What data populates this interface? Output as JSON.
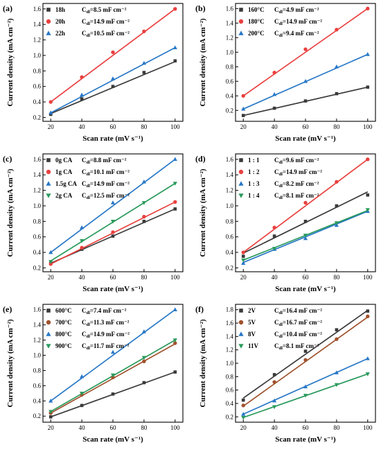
{
  "chart_data": [
    {
      "type": "scatter",
      "panel_label": "(a)",
      "xlabel": "Scan rate (mV s⁻¹)",
      "ylabel": "Current density (mA cm⁻²)",
      "x": [
        20,
        40,
        60,
        80,
        100
      ],
      "xticks": [
        20,
        40,
        60,
        80,
        100
      ],
      "xlim": [
        15,
        105
      ],
      "ylim": [
        0.15,
        1.67
      ],
      "yticks": [
        0.2,
        0.4,
        0.6,
        0.8,
        1.0,
        1.2,
        1.4,
        1.6
      ],
      "ytick_labels": [
        "0.2",
        "0.4",
        "0.6",
        "0.8",
        "1.0",
        "1.2",
        "1.4",
        "1.6"
      ],
      "legend_position": "top-left",
      "series": [
        {
          "name": "18h",
          "cdl": "=8.5 mF cm⁻²",
          "marker": "square",
          "color": "#3a3a3a",
          "values": [
            0.24,
            0.44,
            0.6,
            0.78,
            0.93
          ],
          "fit": [
            0.25,
            0.92
          ]
        },
        {
          "name": "20h",
          "cdl": "=14.9 mF cm⁻²",
          "marker": "circle",
          "color": "#e8413f",
          "values": [
            0.4,
            0.72,
            1.04,
            1.31,
            1.6
          ],
          "fit": [
            0.4,
            1.6
          ]
        },
        {
          "name": "22h",
          "cdl": "=10.5 mF cm⁻²",
          "marker": "triangle",
          "color": "#2878c7",
          "values": [
            0.26,
            0.49,
            0.7,
            0.9,
            1.1
          ],
          "fit": [
            0.26,
            1.1
          ]
        }
      ]
    },
    {
      "type": "scatter",
      "panel_label": "(b)",
      "xlabel": "Scan rate (mV s⁻¹)",
      "ylabel": "Current density (mA cm⁻²)",
      "x": [
        20,
        40,
        60,
        80,
        100
      ],
      "xticks": [
        20,
        40,
        60,
        80,
        100
      ],
      "xlim": [
        15,
        105
      ],
      "ylim": [
        0.05,
        1.67
      ],
      "yticks": [
        0.2,
        0.4,
        0.6,
        0.8,
        1.0,
        1.2,
        1.4,
        1.6
      ],
      "ytick_labels": [
        "0.2",
        "0.4",
        "0.6",
        "0.8",
        "1.0",
        "1.2",
        "1.4",
        "1.6"
      ],
      "legend_position": "top-left",
      "series": [
        {
          "name": "160°C",
          "cdl": "=4.9 mF cm⁻²",
          "marker": "square",
          "color": "#3a3a3a",
          "values": [
            0.13,
            0.23,
            0.33,
            0.43,
            0.52
          ],
          "fit": [
            0.13,
            0.52
          ]
        },
        {
          "name": "180°C",
          "cdl": "=14.9 mF cm⁻²",
          "marker": "circle",
          "color": "#e8413f",
          "values": [
            0.4,
            0.72,
            1.04,
            1.31,
            1.6
          ],
          "fit": [
            0.4,
            1.6
          ]
        },
        {
          "name": "200°C",
          "cdl": "=9.4 mF cm⁻²",
          "marker": "triangle",
          "color": "#2878c7",
          "values": [
            0.22,
            0.42,
            0.6,
            0.8,
            0.97
          ],
          "fit": [
            0.22,
            0.97
          ]
        }
      ]
    },
    {
      "type": "scatter",
      "panel_label": "(c)",
      "xlabel": "Scan rate (mV s⁻¹)",
      "ylabel": "Current density (mA cm⁻²)",
      "x": [
        20,
        40,
        60,
        80,
        100
      ],
      "xticks": [
        20,
        40,
        60,
        80,
        100
      ],
      "xlim": [
        15,
        105
      ],
      "ylim": [
        0.15,
        1.67
      ],
      "yticks": [
        0.2,
        0.4,
        0.6,
        0.8,
        1.0,
        1.2,
        1.4,
        1.6
      ],
      "ytick_labels": [
        "0.2",
        "0.4",
        "0.6",
        "0.8",
        "1.0",
        "1.2",
        "1.4",
        "1.6"
      ],
      "legend_position": "top-left",
      "series": [
        {
          "name": "0g CA",
          "cdl": "=8.8 mF cm⁻²",
          "marker": "square",
          "color": "#3a3a3a",
          "values": [
            0.26,
            0.44,
            0.61,
            0.8,
            0.96
          ],
          "fit": [
            0.26,
            0.96
          ]
        },
        {
          "name": "1g CA",
          "cdl": "=10.1 mF cm⁻²",
          "marker": "circle",
          "color": "#e8413f",
          "values": [
            0.25,
            0.46,
            0.66,
            0.86,
            1.05
          ],
          "fit": [
            0.25,
            1.05
          ]
        },
        {
          "name": "1.5g CA",
          "cdl": "=14.9 mF cm⁻²",
          "marker": "triangle",
          "color": "#2878c7",
          "values": [
            0.4,
            0.72,
            1.04,
            1.31,
            1.6
          ],
          "fit": [
            0.4,
            1.6
          ]
        },
        {
          "name": "2g CA",
          "cdl": "=12.5 mF cm⁻²",
          "marker": "triangle-down",
          "color": "#2a9a5c",
          "values": [
            0.28,
            0.55,
            0.8,
            1.04,
            1.29
          ],
          "fit": [
            0.29,
            1.29
          ]
        }
      ]
    },
    {
      "type": "scatter",
      "panel_label": "(d)",
      "xlabel": "Scan rate (mV s⁻¹)",
      "ylabel": "Current density (mA cm⁻²)",
      "x": [
        20,
        40,
        60,
        80,
        100
      ],
      "xticks": [
        20,
        40,
        60,
        80,
        100
      ],
      "xlim": [
        15,
        105
      ],
      "ylim": [
        0.15,
        1.67
      ],
      "yticks": [
        0.2,
        0.4,
        0.6,
        0.8,
        1.0,
        1.2,
        1.4,
        1.6
      ],
      "ytick_labels": [
        "0.2",
        "0.4",
        "0.6",
        "0.8",
        "1.0",
        "1.2",
        "1.4",
        "1.6"
      ],
      "legend_position": "top-left",
      "series": [
        {
          "name": "1 : 1",
          "cdl": "=9.6 mF cm⁻²",
          "marker": "square",
          "color": "#3a3a3a",
          "values": [
            0.35,
            0.61,
            0.8,
            1.0,
            1.14
          ],
          "fit": [
            0.39,
            1.18
          ]
        },
        {
          "name": "1 : 2",
          "cdl": "=14.9 mF cm⁻²",
          "marker": "circle",
          "color": "#e8413f",
          "values": [
            0.4,
            0.72,
            1.04,
            1.31,
            1.6
          ],
          "fit": [
            0.4,
            1.6
          ]
        },
        {
          "name": "1 : 3",
          "cdl": "=8.2 mF cm⁻²",
          "marker": "triangle",
          "color": "#2878c7",
          "values": [
            0.26,
            0.44,
            0.58,
            0.75,
            0.93
          ],
          "fit": [
            0.27,
            0.93
          ]
        },
        {
          "name": "1 : 4",
          "cdl": "=8.1 mF cm⁻²",
          "marker": "triangle-down",
          "color": "#2a9a5c",
          "values": [
            0.3,
            0.45,
            0.62,
            0.78,
            0.95
          ],
          "fit": [
            0.3,
            0.94
          ]
        }
      ]
    },
    {
      "type": "scatter",
      "panel_label": "(e)",
      "xlabel": "Scan rate (mV s⁻¹)",
      "ylabel": "Current density (mA cm⁻²)",
      "x": [
        20,
        40,
        60,
        80,
        100
      ],
      "xticks": [
        20,
        40,
        60,
        80,
        100
      ],
      "xlim": [
        15,
        105
      ],
      "ylim": [
        0.12,
        1.67
      ],
      "yticks": [
        0.2,
        0.4,
        0.6,
        0.8,
        1.0,
        1.2,
        1.4,
        1.6
      ],
      "ytick_labels": [
        "0.2",
        "0.4",
        "0.6",
        "0.8",
        "1.0",
        "1.2",
        "1.4",
        "1.6"
      ],
      "legend_position": "top-left",
      "series": [
        {
          "name": "600°C",
          "cdl": "=7.4 mF cm⁻²",
          "marker": "square",
          "color": "#3a3a3a",
          "values": [
            0.19,
            0.34,
            0.49,
            0.64,
            0.78
          ],
          "fit": [
            0.19,
            0.78
          ]
        },
        {
          "name": "700°C",
          "cdl": "=11.3 mF cm⁻²",
          "marker": "circle",
          "color": "#a0522d",
          "values": [
            0.24,
            0.48,
            0.71,
            0.92,
            1.16
          ],
          "fit": [
            0.24,
            1.15
          ]
        },
        {
          "name": "800°C",
          "cdl": "=14.9 mF cm⁻²",
          "marker": "triangle",
          "color": "#2878c7",
          "values": [
            0.4,
            0.72,
            1.04,
            1.31,
            1.6
          ],
          "fit": [
            0.4,
            1.6
          ]
        },
        {
          "name": "900°C",
          "cdl": "=11.7 mF cm⁻²",
          "marker": "triangle-down",
          "color": "#2a9a5c",
          "values": [
            0.26,
            0.5,
            0.74,
            0.97,
            1.2
          ],
          "fit": [
            0.26,
            1.2
          ]
        }
      ]
    },
    {
      "type": "scatter",
      "panel_label": "(f)",
      "xlabel": "Scan rate (mV s⁻¹)",
      "ylabel": "Current density (mA cm⁻²)",
      "x": [
        20,
        40,
        60,
        80,
        100
      ],
      "xticks": [
        20,
        40,
        60,
        80,
        100
      ],
      "xlim": [
        15,
        105
      ],
      "ylim": [
        0.12,
        1.88
      ],
      "yticks": [
        0.2,
        0.4,
        0.6,
        0.8,
        1.0,
        1.2,
        1.4,
        1.6,
        1.8
      ],
      "ytick_labels": [
        "0.2",
        "0.4",
        "0.6",
        "0.8",
        "1.0",
        "1.2",
        "1.4",
        "1.6",
        "1.8"
      ],
      "legend_position": "top-left",
      "series": [
        {
          "name": "2V",
          "cdl": "=16.4 mF cm⁻²",
          "marker": "square",
          "color": "#3a3a3a",
          "values": [
            0.45,
            0.83,
            1.18,
            1.5,
            1.78
          ],
          "fit": [
            0.48,
            1.79
          ]
        },
        {
          "name": "5V",
          "cdl": "=16.7 mF cm⁻²",
          "marker": "circle",
          "color": "#a0522d",
          "values": [
            0.37,
            0.72,
            1.05,
            1.36,
            1.7
          ],
          "fit": [
            0.36,
            1.69
          ]
        },
        {
          "name": "8V",
          "cdl": "=10.4 mF cm⁻²",
          "marker": "triangle",
          "color": "#2878c7",
          "values": [
            0.24,
            0.44,
            0.65,
            0.86,
            1.07
          ],
          "fit": [
            0.24,
            1.07
          ]
        },
        {
          "name": "11V",
          "cdl": "=8.1 mF cm⁻²",
          "marker": "triangle-down",
          "color": "#2a9a5c",
          "values": [
            0.19,
            0.35,
            0.52,
            0.68,
            0.84
          ],
          "fit": [
            0.19,
            0.84
          ]
        }
      ]
    }
  ]
}
